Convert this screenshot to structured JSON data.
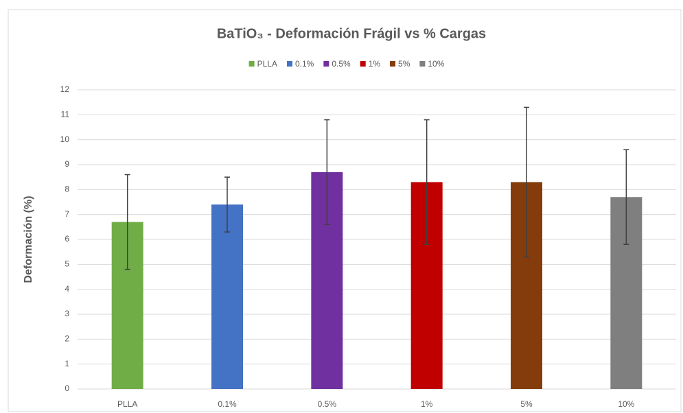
{
  "chart_data": {
    "type": "bar",
    "title": "BaTiO₃ - Deformación Frágil vs % Cargas",
    "y_label": "Deformación (%)",
    "categories": [
      "PLLA",
      "0.1%",
      "0.5%",
      "1%",
      "5%",
      "10%"
    ],
    "values": [
      6.7,
      7.4,
      8.7,
      8.3,
      8.3,
      7.7
    ],
    "errors": [
      1.9,
      1.1,
      2.1,
      2.5,
      3.0,
      1.9
    ],
    "colors": [
      "#70ad47",
      "#4472c4",
      "#7030a0",
      "#c00000",
      "#843c0c",
      "#7f7f7f"
    ],
    "ylim": [
      0,
      12
    ],
    "yticks": [
      0,
      1,
      2,
      3,
      4,
      5,
      6,
      7,
      8,
      9,
      10,
      11,
      12
    ],
    "grid": true,
    "legend": "top"
  }
}
